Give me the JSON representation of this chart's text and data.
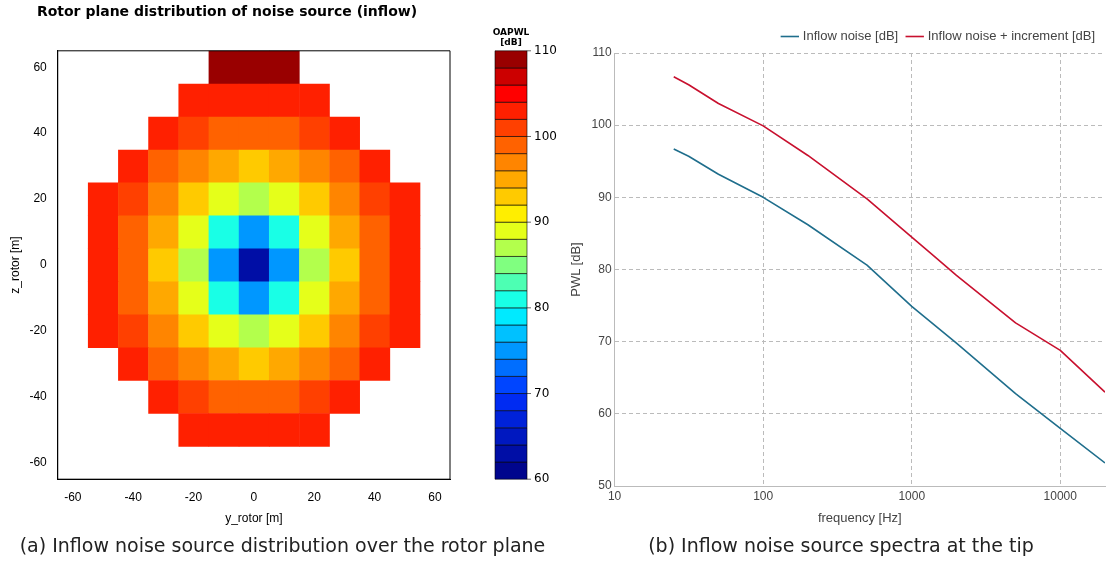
{
  "chart_data": [
    {
      "type": "heatmap",
      "title": "Rotor plane distribution of noise source (inflow)",
      "xlabel": "y_rotor [m]",
      "ylabel": "z_rotor [m]",
      "clabel": "OAPWL [dB]",
      "categories": [
        "-60",
        null,
        "-40",
        null,
        "-20",
        null,
        "0",
        null,
        "20",
        null,
        "40",
        null,
        "60"
      ],
      "y_categories": [
        "60",
        null,
        "40",
        null,
        "20",
        null,
        "0",
        null,
        "-20",
        null,
        "-40",
        null,
        "-60"
      ],
      "cells": [
        [
          null,
          null,
          null,
          null,
          null,
          110,
          110,
          110,
          null,
          null,
          null,
          null,
          null
        ],
        [
          null,
          null,
          null,
          null,
          103,
          102,
          102,
          102,
          103,
          null,
          null,
          null,
          null
        ],
        [
          null,
          null,
          null,
          102,
          100,
          98,
          98,
          98,
          100,
          102,
          null,
          null,
          null
        ],
        [
          null,
          null,
          102,
          99,
          96,
          94,
          93,
          94,
          96,
          99,
          102,
          null,
          null
        ],
        [
          null,
          103,
          100,
          96,
          92,
          88,
          86,
          88,
          92,
          96,
          100,
          103,
          null
        ],
        [
          null,
          102,
          98,
          94,
          88,
          80,
          75,
          80,
          88,
          94,
          98,
          102,
          null
        ],
        [
          null,
          102,
          98,
          93,
          86,
          75,
          62,
          75,
          86,
          93,
          98,
          102,
          null
        ],
        [
          null,
          102,
          98,
          94,
          88,
          80,
          75,
          80,
          88,
          94,
          98,
          102,
          null
        ],
        [
          null,
          103,
          100,
          96,
          92,
          88,
          86,
          88,
          92,
          96,
          100,
          103,
          null
        ],
        [
          null,
          null,
          102,
          99,
          96,
          94,
          93,
          94,
          96,
          99,
          102,
          null,
          null
        ],
        [
          null,
          null,
          null,
          102,
          100,
          98,
          98,
          98,
          100,
          102,
          null,
          null,
          null
        ],
        [
          null,
          null,
          null,
          null,
          103,
          102,
          102,
          102,
          103,
          null,
          null,
          null,
          null
        ],
        [
          null,
          null,
          null,
          null,
          null,
          null,
          null,
          null,
          null,
          null,
          null,
          null,
          null
        ]
      ],
      "clim": [
        60,
        110
      ],
      "cticks": [
        60,
        70,
        80,
        90,
        100,
        110
      ],
      "annotations": [
        "(a)  Inflow noise source distribution over the rotor plane"
      ]
    },
    {
      "type": "line",
      "xlabel": "frequency [Hz]",
      "ylabel": "PWL [dB]",
      "log": "x",
      "x": [
        25,
        31.5,
        50,
        100,
        200,
        500,
        1000,
        2000,
        5000,
        10000,
        20000
      ],
      "series": [
        {
          "name": "Inflow noise [dB]",
          "color": "#1f6e8c",
          "values": [
            96.7,
            95.7,
            93.2,
            90,
            86.2,
            80.6,
            74.9,
            69.8,
            62.8,
            58,
            53.2
          ]
        },
        {
          "name": "Inflow noise + increment [dB]",
          "color": "#c8102e",
          "values": [
            106.7,
            105.6,
            103,
            99.9,
            95.8,
            89.8,
            84.5,
            79.2,
            72.6,
            68.8,
            63
          ]
        }
      ],
      "xlim": [
        10,
        20000
      ],
      "xticks": [
        10,
        100,
        1000,
        10000
      ],
      "ylim": [
        50,
        110
      ],
      "yticks": [
        50,
        60,
        70,
        80,
        90,
        100,
        110
      ],
      "grid": true,
      "legend": "top right",
      "line_style": "solid",
      "marker": "none",
      "annotations": [
        "(b)  Inflow noise source spectra at the tip"
      ]
    }
  ]
}
